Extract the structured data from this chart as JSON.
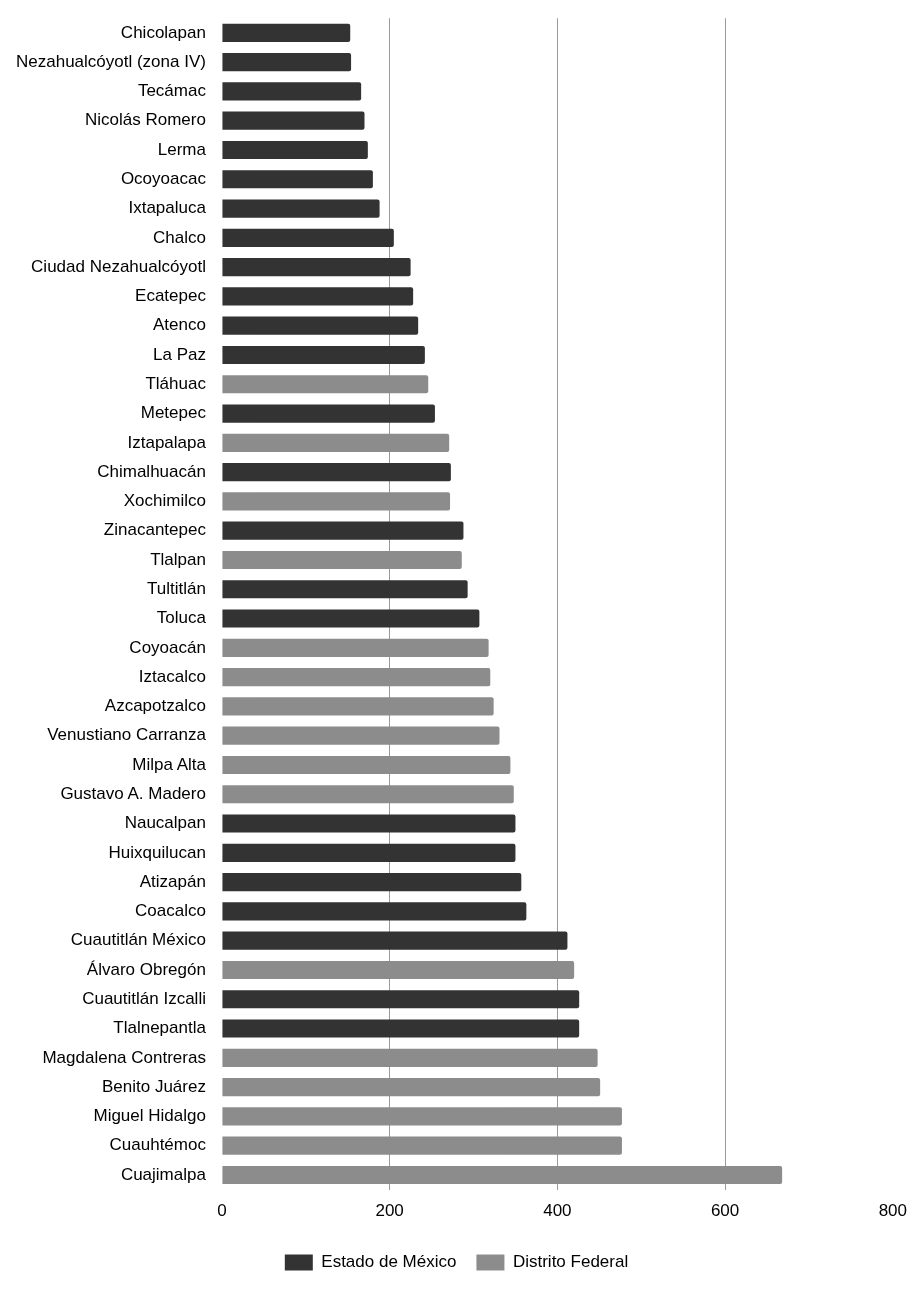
{
  "chart_data": {
    "type": "bar",
    "orientation": "horizontal",
    "stacked": true,
    "categories": [
      "Chicolapan",
      "Nezahualcóyotl (zona IV)",
      "Tecámac",
      "Nicolás Romero",
      "Lerma",
      "Ocoyoacac",
      "Ixtapaluca",
      "Chalco",
      "Ciudad Nezahualcóyotl",
      "Ecatepec",
      "Atenco",
      "La Paz",
      "Tláhuac",
      "Metepec",
      "Iztapalapa",
      "Chimalhuacán",
      "Xochimilco",
      "Zinacantepec",
      "Tlalpan",
      "Tultitlán",
      "Toluca",
      "Coyoacán",
      "Iztacalco",
      "Azcapotzalco",
      "Venustiano Carranza",
      "Milpa Alta",
      "Gustavo A. Madero",
      "Naucalpan",
      "Huixquilucan",
      "Atizapán",
      "Coacalco",
      "Cuautitlán México",
      "Álvaro Obregón",
      "Cuautitlán Izcalli",
      "Tlalnepantla",
      "Magdalena Contreras",
      "Benito Juárez",
      "Miguel Hidalgo",
      "Cuauhtémoc",
      "Cuajimalpa"
    ],
    "series": [
      {
        "name": "Estado de México",
        "color": "#333333",
        "values": [
          153,
          154,
          166,
          170,
          174,
          180,
          188,
          205,
          225,
          228,
          234,
          242,
          null,
          254,
          null,
          273,
          null,
          288,
          null,
          293,
          307,
          null,
          null,
          null,
          null,
          null,
          null,
          350,
          350,
          357,
          363,
          412,
          null,
          426,
          426,
          null,
          null,
          null,
          null,
          null
        ]
      },
      {
        "name": "Distrito Federal",
        "color": "#8c8c8c",
        "values": [
          null,
          null,
          null,
          null,
          null,
          null,
          null,
          null,
          null,
          null,
          null,
          null,
          246,
          null,
          271,
          null,
          272,
          null,
          286,
          null,
          null,
          318,
          320,
          324,
          331,
          344,
          348,
          null,
          null,
          null,
          null,
          null,
          420,
          null,
          null,
          448,
          451,
          477,
          477,
          668
        ]
      }
    ],
    "xlim": [
      0,
      800
    ],
    "xticks": [
      0,
      200,
      400,
      600,
      800
    ],
    "grid": "x",
    "legend": "bottom"
  }
}
